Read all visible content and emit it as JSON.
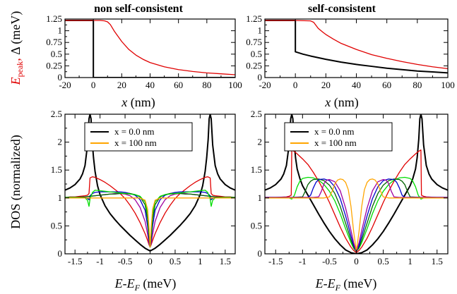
{
  "titles": {
    "top_left": "non self-consistent",
    "top_right": "self-consistent"
  },
  "labels": {
    "x_top": "x (nm)",
    "x_bottom": "E-E_F (meV)",
    "y_top_left": "E_peak, Δ (meV)",
    "y_bottom_left": "DOS (normalized)"
  },
  "legend": {
    "entries": [
      {
        "label": "x = 0.0 nm",
        "color": "#000000"
      },
      {
        "label": "x = 100 nm",
        "color": "#ffa500"
      }
    ]
  },
  "colors": {
    "black": "#000000",
    "red": "#e00000",
    "green": "#00dd00",
    "blue": "#0000cc",
    "darkgreen": "#006400",
    "purple": "#a000a0",
    "orange": "#ffa500"
  },
  "chart_data": [
    {
      "id": "top-left",
      "type": "line",
      "title": "non self-consistent",
      "xlabel": "x (nm)",
      "ylabel": "E_peak, Δ (meV)",
      "xlim": [
        -20,
        100
      ],
      "ylim": [
        0,
        1.25
      ],
      "xticks": [
        -20,
        0,
        20,
        40,
        60,
        80,
        100
      ],
      "yticks": [
        0,
        0.25,
        0.5,
        0.75,
        1,
        1.25
      ],
      "ytick_labels": [
        "0",
        "0.25",
        "0.5",
        "0.75",
        "1",
        "1.25"
      ],
      "series": [
        {
          "color": "black",
          "x": [
            -20,
            0,
            0,
            100
          ],
          "y": [
            1.22,
            1.22,
            0,
            0
          ]
        },
        {
          "color": "red",
          "x": [
            -20,
            0,
            5,
            8,
            10,
            12,
            15,
            20,
            25,
            30,
            35,
            40,
            50,
            60,
            70,
            80,
            90,
            100
          ],
          "y": [
            1.22,
            1.22,
            1.22,
            1.21,
            1.19,
            1.13,
            0.98,
            0.77,
            0.6,
            0.48,
            0.39,
            0.32,
            0.23,
            0.17,
            0.13,
            0.1,
            0.08,
            0.06
          ]
        }
      ]
    },
    {
      "id": "top-right",
      "type": "line",
      "title": "self-consistent",
      "xlabel": "x (nm)",
      "xlim": [
        -20,
        100
      ],
      "ylim": [
        0,
        1.25
      ],
      "xticks": [
        -20,
        0,
        20,
        40,
        60,
        80,
        100
      ],
      "yticks": [
        0,
        0.25,
        0.5,
        0.75,
        1,
        1.25
      ],
      "ytick_labels": [
        "0",
        "0.25",
        "0.5",
        "0.75",
        "1",
        "1.25"
      ],
      "series": [
        {
          "color": "black",
          "x": [
            -20,
            0,
            0,
            5,
            10,
            20,
            30,
            40,
            50,
            60,
            70,
            80,
            90,
            100
          ],
          "y": [
            1.22,
            1.22,
            0.55,
            0.5,
            0.46,
            0.39,
            0.33,
            0.28,
            0.24,
            0.2,
            0.17,
            0.14,
            0.12,
            0.1
          ]
        },
        {
          "color": "red",
          "x": [
            -20,
            0,
            10,
            12,
            15,
            18,
            20,
            25,
            30,
            40,
            50,
            60,
            70,
            80,
            90,
            100
          ],
          "y": [
            1.22,
            1.22,
            1.21,
            1.18,
            1.05,
            0.97,
            0.92,
            0.82,
            0.73,
            0.6,
            0.49,
            0.41,
            0.34,
            0.28,
            0.23,
            0.19
          ]
        }
      ]
    },
    {
      "id": "bottom-left",
      "type": "line",
      "xlabel": "E-E_F (meV)",
      "ylabel": "DOS (normalized)",
      "xlim": [
        -1.7,
        1.7
      ],
      "ylim": [
        0,
        2.5
      ],
      "xticks": [
        -1.5,
        -1,
        -0.5,
        0,
        0.5,
        1,
        1.5
      ],
      "xtick_labels": [
        "-1.5",
        "-1",
        "-0.5",
        "0",
        "0.5",
        "1",
        "1.5"
      ],
      "yticks": [
        0,
        0.5,
        1,
        1.5,
        2,
        2.5
      ],
      "ytick_labels": [
        "0",
        "0.5",
        "1",
        "1.5",
        "2",
        "2.5"
      ],
      "series": [
        {
          "color": "black",
          "x": [
            0,
            0.1,
            0.2,
            0.3,
            0.4,
            0.5,
            0.6,
            0.7,
            0.8,
            0.9,
            1.0,
            1.05,
            1.1,
            1.13,
            1.16,
            1.18,
            1.2,
            1.22,
            1.25,
            1.3,
            1.35,
            1.4,
            1.5,
            1.6,
            1.7
          ],
          "y": [
            0.05,
            0.1,
            0.17,
            0.25,
            0.33,
            0.42,
            0.51,
            0.61,
            0.72,
            0.86,
            1.06,
            1.22,
            1.48,
            1.72,
            2.05,
            2.42,
            2.5,
            2.42,
            1.95,
            1.58,
            1.43,
            1.34,
            1.24,
            1.18,
            1.14
          ]
        },
        {
          "color": "red",
          "x": [
            0,
            0.02,
            0.05,
            0.1,
            0.2,
            0.3,
            0.4,
            0.5,
            0.6,
            0.7,
            0.8,
            0.9,
            1.0,
            1.1,
            1.15,
            1.2,
            1.22,
            1.25,
            1.3,
            1.4,
            1.5,
            1.6,
            1.7
          ],
          "y": [
            0.12,
            0.16,
            0.24,
            0.36,
            0.56,
            0.73,
            0.87,
            0.99,
            1.08,
            1.15,
            1.22,
            1.28,
            1.33,
            1.37,
            1.38,
            1.36,
            1.08,
            1.05,
            1.04,
            1.03,
            1.02,
            1.02,
            1.01
          ]
        },
        {
          "color": "purple",
          "x": [
            0,
            0.02,
            0.05,
            0.1,
            0.2,
            0.3,
            0.4,
            0.5,
            0.6,
            0.7,
            0.8,
            0.9,
            1.0,
            1.1,
            1.2,
            1.3,
            1.5,
            1.7
          ],
          "y": [
            0.12,
            0.18,
            0.35,
            0.58,
            0.83,
            0.97,
            1.04,
            1.07,
            1.08,
            1.08,
            1.07,
            1.06,
            1.05,
            1.04,
            1.03,
            1.02,
            1.01,
            1.01
          ]
        },
        {
          "color": "blue",
          "x": [
            0,
            0.02,
            0.05,
            0.1,
            0.2,
            0.3,
            0.4,
            0.5,
            0.6,
            0.7,
            0.8,
            0.9,
            1.0,
            1.1,
            1.15,
            1.2,
            1.22,
            1.25,
            1.3,
            1.5,
            1.7
          ],
          "y": [
            0.12,
            0.25,
            0.5,
            0.78,
            0.97,
            1.05,
            1.08,
            1.1,
            1.11,
            1.11,
            1.11,
            1.11,
            1.11,
            1.1,
            1.08,
            1.04,
            0.97,
            0.99,
            1.01,
            1.01,
            1.01
          ]
        },
        {
          "color": "darkgreen",
          "x": [
            0,
            0.02,
            0.05,
            0.1,
            0.2,
            0.3,
            0.4,
            0.5,
            0.6,
            0.7,
            0.8,
            0.9,
            1.0,
            1.1,
            1.2,
            1.3,
            1.5,
            1.7
          ],
          "y": [
            0.12,
            0.3,
            0.62,
            0.88,
            1.02,
            1.06,
            1.08,
            1.08,
            1.08,
            1.07,
            1.07,
            1.06,
            1.05,
            1.04,
            1.03,
            1.02,
            1.01,
            1.01
          ]
        },
        {
          "color": "green",
          "x": [
            0,
            0.02,
            0.05,
            0.1,
            0.2,
            0.3,
            0.4,
            0.5,
            0.6,
            0.7,
            0.8,
            0.9,
            1.0,
            1.1,
            1.15,
            1.2,
            1.22,
            1.25,
            1.3,
            1.5,
            1.7
          ],
          "y": [
            0.12,
            0.38,
            0.72,
            0.93,
            1.03,
            1.06,
            1.07,
            1.08,
            1.09,
            1.1,
            1.11,
            1.12,
            1.13,
            1.14,
            1.1,
            0.98,
            0.85,
            0.96,
            1.0,
            1.01,
            1.01
          ]
        },
        {
          "color": "orange",
          "x": [
            0,
            0.02,
            0.05,
            0.1,
            0.2,
            0.4,
            0.6,
            0.8,
            1.0,
            1.2,
            1.4,
            1.7
          ],
          "y": [
            0.12,
            0.45,
            0.8,
            0.96,
            1.0,
            1.0,
            1.0,
            1.0,
            1.0,
            1.0,
            1.0,
            1.0
          ]
        }
      ]
    },
    {
      "id": "bottom-right",
      "type": "line",
      "xlabel": "E-E_F (meV)",
      "xlim": [
        -1.7,
        1.7
      ],
      "ylim": [
        0,
        2.5
      ],
      "xticks": [
        -1.5,
        -1,
        -0.5,
        0,
        0.5,
        1,
        1.5
      ],
      "xtick_labels": [
        "-1.5",
        "-1",
        "-0.5",
        "0",
        "0.5",
        "1",
        "1.5"
      ],
      "yticks": [
        0,
        0.5,
        1,
        1.5,
        2,
        2.5
      ],
      "ytick_labels": [
        "0",
        "0.5",
        "1",
        "1.5",
        "2",
        "2.5"
      ],
      "series": [
        {
          "color": "black",
          "x": [
            0,
            0.05,
            0.1,
            0.2,
            0.3,
            0.4,
            0.5,
            0.6,
            0.7,
            0.8,
            0.9,
            1.0,
            1.05,
            1.1,
            1.13,
            1.16,
            1.18,
            1.2,
            1.22,
            1.25,
            1.3,
            1.35,
            1.4,
            1.5,
            1.6,
            1.7
          ],
          "y": [
            0.0,
            0.01,
            0.02,
            0.07,
            0.16,
            0.27,
            0.4,
            0.55,
            0.71,
            0.88,
            1.05,
            1.22,
            1.35,
            1.52,
            1.72,
            2.05,
            2.42,
            2.5,
            2.42,
            1.95,
            1.58,
            1.43,
            1.34,
            1.24,
            1.18,
            1.14
          ]
        },
        {
          "color": "red",
          "x": [
            0,
            0.05,
            0.1,
            0.2,
            0.3,
            0.4,
            0.5,
            0.6,
            0.7,
            0.8,
            0.9,
            1.0,
            1.1,
            1.15,
            1.2,
            1.21,
            1.25,
            1.3,
            1.5,
            1.7
          ],
          "y": [
            0.02,
            0.06,
            0.12,
            0.28,
            0.48,
            0.7,
            0.92,
            1.12,
            1.3,
            1.46,
            1.6,
            1.7,
            1.79,
            1.83,
            1.86,
            1.05,
            1.03,
            1.02,
            1.01,
            1.01
          ]
        },
        {
          "color": "green",
          "x": [
            0,
            0.05,
            0.1,
            0.2,
            0.3,
            0.4,
            0.5,
            0.6,
            0.7,
            0.8,
            0.9,
            1.0,
            1.05,
            1.1,
            1.15,
            1.2,
            1.25,
            1.3,
            1.5,
            1.7
          ],
          "y": [
            0.04,
            0.1,
            0.2,
            0.45,
            0.72,
            0.95,
            1.12,
            1.24,
            1.32,
            1.36,
            1.37,
            1.35,
            1.3,
            1.2,
            1.05,
            0.98,
            1.0,
            1.01,
            1.01,
            1.01
          ]
        },
        {
          "color": "darkgreen",
          "x": [
            0,
            0.05,
            0.1,
            0.2,
            0.3,
            0.4,
            0.5,
            0.6,
            0.7,
            0.8,
            0.85,
            0.9,
            0.95,
            1.0,
            1.2,
            1.5,
            1.7
          ],
          "y": [
            0.04,
            0.12,
            0.25,
            0.55,
            0.85,
            1.08,
            1.23,
            1.31,
            1.34,
            1.33,
            1.3,
            1.24,
            1.12,
            1.02,
            1.01,
            1.01,
            1.01
          ]
        },
        {
          "color": "blue",
          "x": [
            0,
            0.05,
            0.1,
            0.2,
            0.3,
            0.4,
            0.5,
            0.6,
            0.7,
            0.75,
            0.8,
            0.85,
            0.9,
            1.2,
            1.5,
            1.7
          ],
          "y": [
            0.04,
            0.15,
            0.32,
            0.68,
            0.99,
            1.2,
            1.31,
            1.34,
            1.33,
            1.28,
            1.18,
            1.05,
            1.01,
            1.01,
            1.01,
            1.01
          ]
        },
        {
          "color": "purple",
          "x": [
            0,
            0.05,
            0.1,
            0.2,
            0.3,
            0.4,
            0.5,
            0.55,
            0.6,
            0.65,
            0.7,
            0.8,
            1.2,
            1.7
          ],
          "y": [
            0.04,
            0.2,
            0.42,
            0.82,
            1.13,
            1.29,
            1.33,
            1.32,
            1.26,
            1.12,
            1.02,
            1.01,
            1.01,
            1.01
          ]
        },
        {
          "color": "orange",
          "x": [
            0,
            0.05,
            0.1,
            0.15,
            0.2,
            0.25,
            0.3,
            0.35,
            0.4,
            0.45,
            0.5,
            0.6,
            1.0,
            1.7
          ],
          "y": [
            0.05,
            0.4,
            0.85,
            1.15,
            1.28,
            1.33,
            1.34,
            1.32,
            1.25,
            1.12,
            1.02,
            1.0,
            1.0,
            1.0
          ]
        }
      ]
    }
  ]
}
